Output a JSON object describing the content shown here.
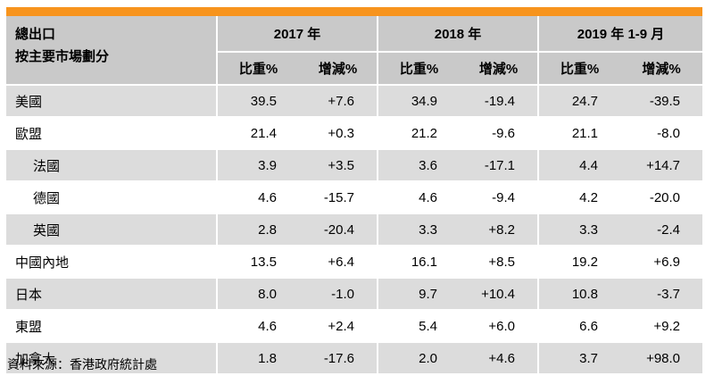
{
  "header": {
    "stub_line1": "總出口",
    "stub_line2": "按主要市場劃分",
    "groups": [
      "2017 年",
      "2018 年",
      "2019 年 1-9 月"
    ],
    "sub_share": "比重%",
    "sub_change": "增減%"
  },
  "rows": [
    {
      "label": "美國",
      "v": [
        "39.5",
        "+7.6",
        "34.9",
        "-19.4",
        "24.7",
        "-39.5"
      ]
    },
    {
      "label": "歐盟",
      "v": [
        "21.4",
        "+0.3",
        "21.2",
        "-9.6",
        "21.1",
        "-8.0"
      ]
    },
    {
      "label": "法國",
      "v": [
        "3.9",
        "+3.5",
        "3.6",
        "-17.1",
        "4.4",
        "+14.7"
      ]
    },
    {
      "label": "德國",
      "v": [
        "4.6",
        "-15.7",
        "4.6",
        "-9.4",
        "4.2",
        "-20.0"
      ]
    },
    {
      "label": "英國",
      "v": [
        "2.8",
        "-20.4",
        "3.3",
        "+8.2",
        "3.3",
        "-2.4"
      ]
    },
    {
      "label": "中國內地",
      "v": [
        "13.5",
        "+6.4",
        "16.1",
        "+8.5",
        "19.2",
        "+6.9"
      ]
    },
    {
      "label": "日本",
      "v": [
        "8.0",
        "-1.0",
        "9.7",
        "+10.4",
        "10.8",
        "-3.7"
      ]
    },
    {
      "label": "東盟",
      "v": [
        "4.6",
        "+2.4",
        "5.4",
        "+6.0",
        "6.6",
        "+9.2"
      ]
    },
    {
      "label": "加拿大",
      "v": [
        "1.8",
        "-17.6",
        "2.0",
        "+4.6",
        "3.7",
        "+98.0"
      ]
    }
  ],
  "source": "資料來源：香港政府統計處",
  "colors": {
    "accent_bar": "#f7941d",
    "header_bg": "#c9c9c9",
    "row_shade": "#dcdcdc"
  }
}
